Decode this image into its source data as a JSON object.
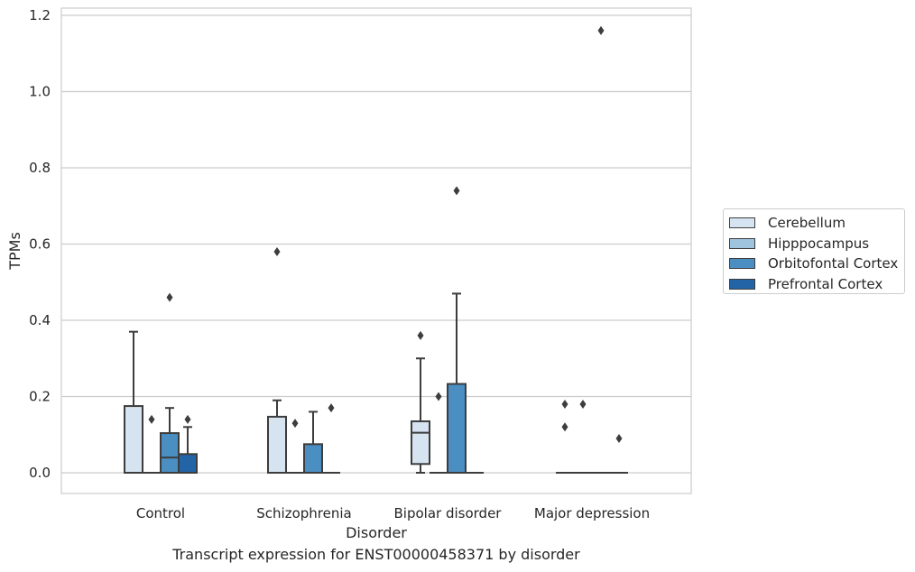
{
  "chart_data": {
    "type": "box",
    "xlabel": "Disorder",
    "ylabel": "TPMs",
    "caption": "Transcript expression for ENST00000458371 by disorder",
    "ylim": [
      -0.058,
      1.222
    ],
    "yticks": [
      "0.0",
      "0.2",
      "0.4",
      "0.6",
      "0.8",
      "1.0",
      "1.2"
    ],
    "grid": true,
    "legend_position": "right",
    "categories": [
      "Control",
      "Schizophrenia",
      "Bipolar disorder",
      "Major depression"
    ],
    "series": [
      {
        "name": "Cerebellum",
        "color": "#d6e3f0",
        "boxes": [
          {
            "q1": 0.0,
            "median": 0.0,
            "q3": 0.175,
            "whisker_low": 0.0,
            "whisker_high": 0.37,
            "outliers": []
          },
          {
            "q1": 0.0,
            "median": 0.0,
            "q3": 0.147,
            "whisker_low": 0.0,
            "whisker_high": 0.19,
            "outliers": [
              0.58
            ]
          },
          {
            "q1": 0.023,
            "median": 0.105,
            "q3": 0.135,
            "whisker_low": 0.0,
            "whisker_high": 0.3,
            "outliers": [
              0.36
            ]
          },
          {
            "q1": 0.0,
            "median": 0.0,
            "q3": 0.0,
            "whisker_low": 0.0,
            "whisker_high": 0.0,
            "outliers": [
              0.12,
              0.18
            ]
          }
        ]
      },
      {
        "name": "Hipppocampus",
        "color": "#9fc4de",
        "boxes": [
          {
            "q1": 0.0,
            "median": 0.0,
            "q3": 0.0,
            "whisker_low": 0.0,
            "whisker_high": 0.0,
            "outliers": [
              0.14
            ]
          },
          {
            "q1": 0.0,
            "median": 0.0,
            "q3": 0.0,
            "whisker_low": 0.0,
            "whisker_high": 0.0,
            "outliers": [
              0.13
            ]
          },
          {
            "q1": 0.0,
            "median": 0.0,
            "q3": 0.0,
            "whisker_low": 0.0,
            "whisker_high": 0.0,
            "outliers": [
              0.2
            ]
          },
          {
            "q1": 0.0,
            "median": 0.0,
            "q3": 0.0,
            "whisker_low": 0.0,
            "whisker_high": 0.0,
            "outliers": [
              0.18
            ]
          }
        ]
      },
      {
        "name": "Orbitofontal Cortex",
        "color": "#4a8ec2",
        "boxes": [
          {
            "q1": 0.0,
            "median": 0.04,
            "q3": 0.104,
            "whisker_low": 0.0,
            "whisker_high": 0.17,
            "outliers": [
              0.46
            ]
          },
          {
            "q1": 0.0,
            "median": 0.0,
            "q3": 0.075,
            "whisker_low": 0.0,
            "whisker_high": 0.16,
            "outliers": []
          },
          {
            "q1": 0.0,
            "median": 0.0,
            "q3": 0.233,
            "whisker_low": 0.0,
            "whisker_high": 0.47,
            "outliers": [
              0.74
            ]
          },
          {
            "q1": 0.0,
            "median": 0.0,
            "q3": 0.0,
            "whisker_low": 0.0,
            "whisker_high": 0.0,
            "outliers": [
              1.16
            ]
          }
        ]
      },
      {
        "name": "Prefrontal Cortex",
        "color": "#2364a6",
        "boxes": [
          {
            "q1": 0.0,
            "median": 0.0,
            "q3": 0.049,
            "whisker_low": 0.0,
            "whisker_high": 0.12,
            "outliers": [
              0.14
            ]
          },
          {
            "q1": 0.0,
            "median": 0.0,
            "q3": 0.0,
            "whisker_low": 0.0,
            "whisker_high": 0.0,
            "outliers": [
              0.17
            ]
          },
          {
            "q1": 0.0,
            "median": 0.0,
            "q3": 0.0,
            "whisker_low": 0.0,
            "whisker_high": 0.0,
            "outliers": []
          },
          {
            "q1": 0.0,
            "median": 0.0,
            "q3": 0.0,
            "whisker_low": 0.0,
            "whisker_high": 0.0,
            "outliers": [
              0.09
            ]
          }
        ]
      }
    ]
  }
}
